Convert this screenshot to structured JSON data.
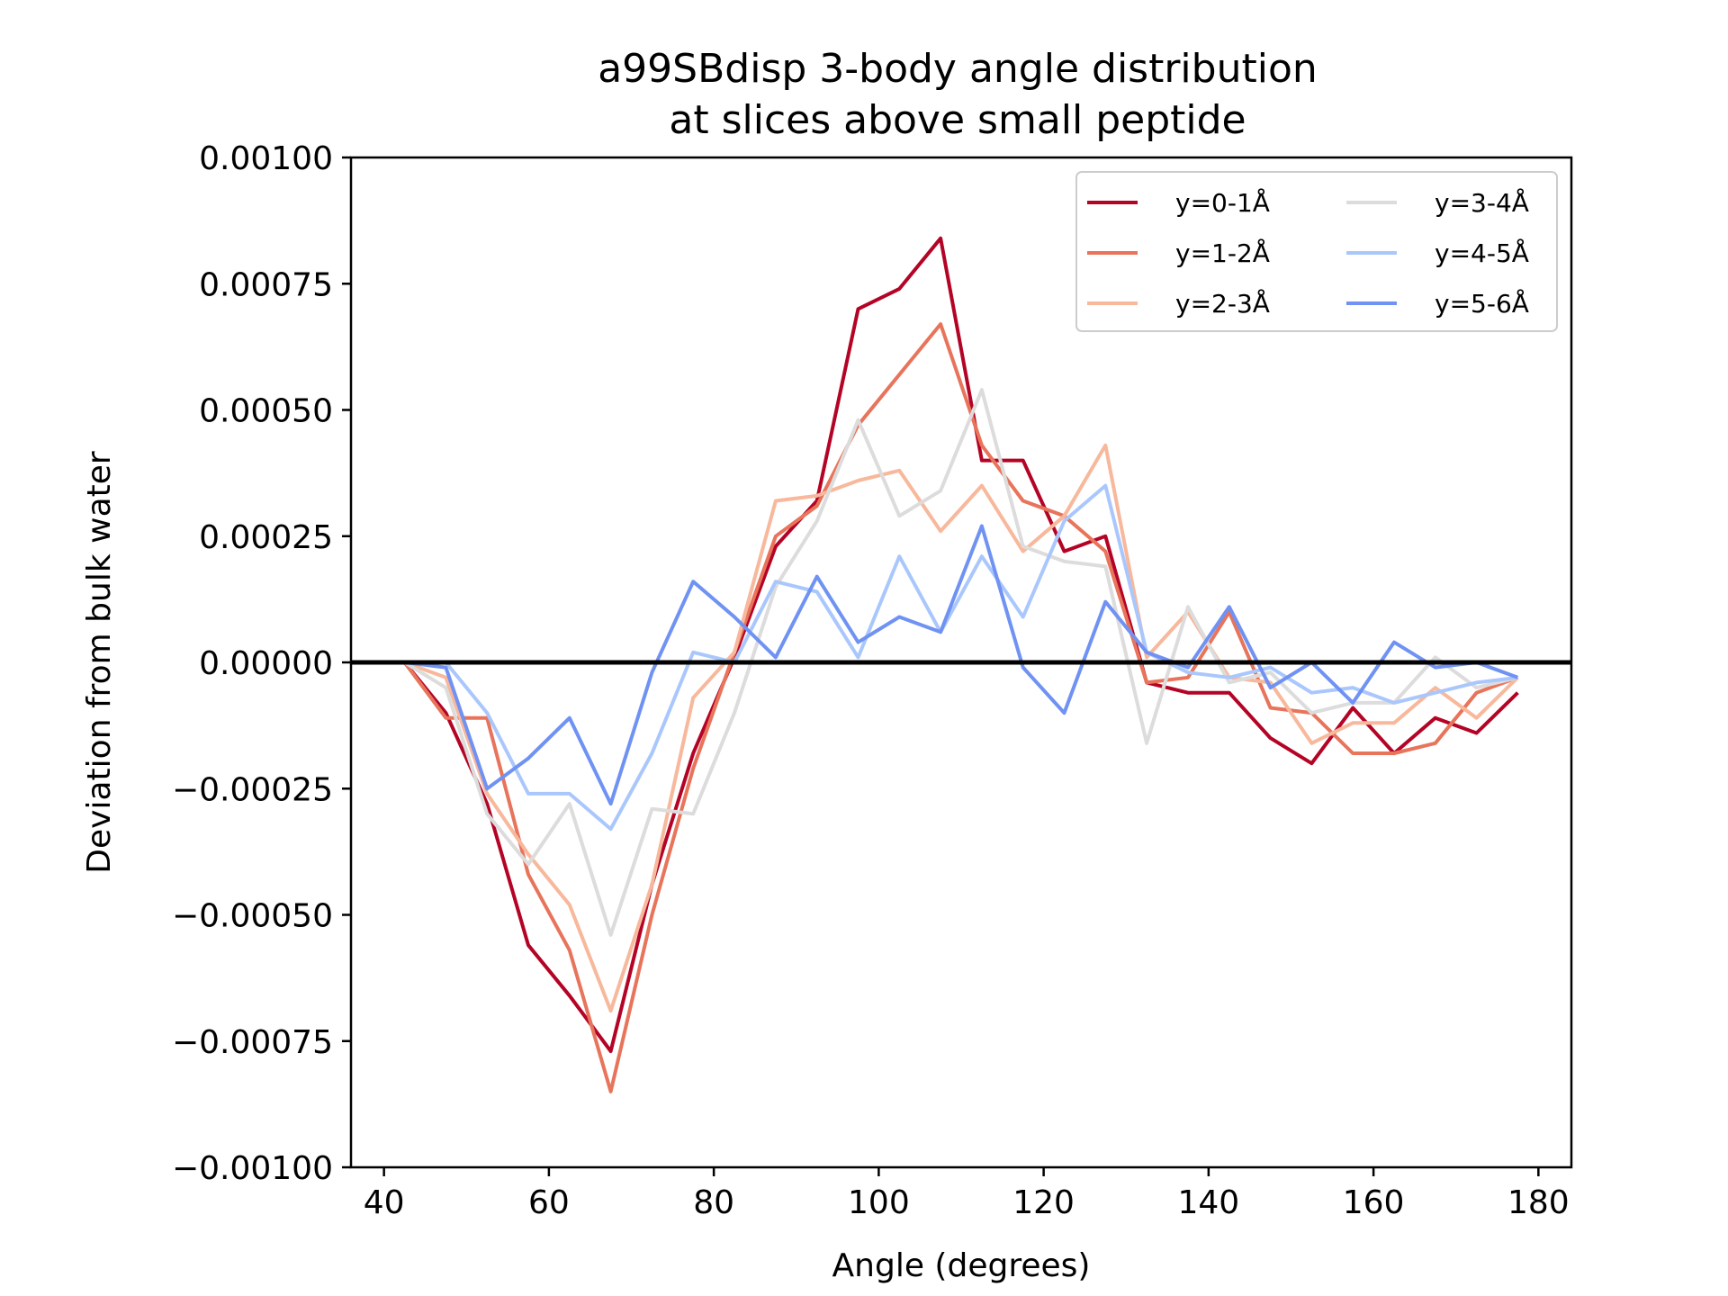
{
  "chart_data": {
    "type": "line",
    "title": [
      "a99SBdisp 3-body angle distribution",
      "at slices above small peptide"
    ],
    "xlabel": "Angle (degrees)",
    "ylabel": "Deviation from bulk water",
    "xlim": [
      36,
      184
    ],
    "ylim": [
      -0.001,
      0.001
    ],
    "xticks": [
      40,
      60,
      80,
      100,
      120,
      140,
      160,
      180
    ],
    "xtick_labels": [
      "40",
      "60",
      "80",
      "100",
      "120",
      "140",
      "160",
      "180"
    ],
    "yticks": [
      -0.001,
      -0.00075,
      -0.0005,
      -0.00025,
      0,
      0.00025,
      0.0005,
      0.00075,
      0.001
    ],
    "ytick_labels": [
      "−0.00100",
      "−0.00075",
      "−0.00050",
      "−0.00025",
      "0.00000",
      "0.00025",
      "0.00050",
      "0.00075",
      "0.00100"
    ],
    "reference_line": 0,
    "grid": false,
    "legend_position": "top-right",
    "legend_columns": 2,
    "x": [
      42.5,
      47.5,
      52.5,
      57.5,
      62.5,
      67.5,
      72.5,
      77.5,
      82.5,
      87.5,
      92.5,
      97.5,
      102.5,
      107.5,
      112.5,
      117.5,
      122.5,
      127.5,
      132.5,
      137.5,
      142.5,
      147.5,
      152.5,
      157.5,
      162.5,
      167.5,
      172.5,
      177.5
    ],
    "series": [
      {
        "name": "y=0-1Å",
        "color": "#b40426",
        "values": [
          0.0,
          -0.0001,
          -0.00028,
          -0.00056,
          -0.00066,
          -0.00077,
          -0.00044,
          -0.00018,
          1e-05,
          0.00023,
          0.00032,
          0.0007,
          0.00074,
          0.00084,
          0.0004,
          0.0004,
          0.00022,
          0.00025,
          -4e-05,
          -6e-05,
          -6e-05,
          -0.00015,
          -0.0002,
          -9e-05,
          -0.00018,
          -0.00011,
          -0.00014,
          -6e-05
        ]
      },
      {
        "name": "y=1-2Å",
        "color": "#e7745b",
        "values": [
          0.0,
          -0.00011,
          -0.00011,
          -0.00042,
          -0.00057,
          -0.00085,
          -0.0005,
          -0.00021,
          2e-05,
          0.00025,
          0.00031,
          0.00047,
          0.00057,
          0.00067,
          0.00043,
          0.00032,
          0.00029,
          0.00022,
          -4e-05,
          -3e-05,
          0.0001,
          -9e-05,
          -0.0001,
          -0.00018,
          -0.00018,
          -0.00016,
          -6e-05,
          -3e-05
        ]
      },
      {
        "name": "y=2-3Å",
        "color": "#f7b89c",
        "values": [
          0.0,
          -3e-05,
          -0.00026,
          -0.00038,
          -0.00048,
          -0.00069,
          -0.00044,
          -7e-05,
          2e-05,
          0.00032,
          0.00033,
          0.00036,
          0.00038,
          0.00026,
          0.00035,
          0.00022,
          0.00029,
          0.00043,
          1e-05,
          0.0001,
          -3e-05,
          -4e-05,
          -0.00016,
          -0.00012,
          -0.00012,
          -5e-05,
          -0.00011,
          -3e-05
        ]
      },
      {
        "name": "y=3-4Å",
        "color": "#dddcdc",
        "values": [
          0.0,
          -5e-05,
          -0.0003,
          -0.0004,
          -0.00028,
          -0.00054,
          -0.00029,
          -0.0003,
          -0.0001,
          0.00015,
          0.00028,
          0.00048,
          0.00029,
          0.00034,
          0.00054,
          0.00023,
          0.0002,
          0.00019,
          -0.00016,
          0.00011,
          -4e-05,
          -2e-05,
          -0.0001,
          -8e-05,
          -8e-05,
          1e-05,
          -5e-05,
          -3e-05
        ]
      },
      {
        "name": "y=4-5Å",
        "color": "#aac7fd",
        "values": [
          0.0,
          0.0,
          -0.0001,
          -0.00026,
          -0.00026,
          -0.00033,
          -0.00018,
          2e-05,
          0.0,
          0.00016,
          0.00014,
          1e-05,
          0.00021,
          6e-05,
          0.00021,
          9e-05,
          0.00028,
          0.00035,
          2e-05,
          -2e-05,
          -3e-05,
          -1e-05,
          -6e-05,
          -5e-05,
          -8e-05,
          -6e-05,
          -4e-05,
          -3e-05
        ]
      },
      {
        "name": "y=5-6Å",
        "color": "#6f92f3",
        "values": [
          0.0,
          -1e-05,
          -0.00025,
          -0.00019,
          -0.00011,
          -0.00028,
          -2e-05,
          0.00016,
          9e-05,
          1e-05,
          0.00017,
          4e-05,
          9e-05,
          6e-05,
          0.00027,
          -1e-05,
          -0.0001,
          0.00012,
          2e-05,
          -1e-05,
          0.00011,
          -5e-05,
          0.0,
          -8e-05,
          4e-05,
          -1e-05,
          0.0,
          -3e-05
        ]
      }
    ]
  }
}
